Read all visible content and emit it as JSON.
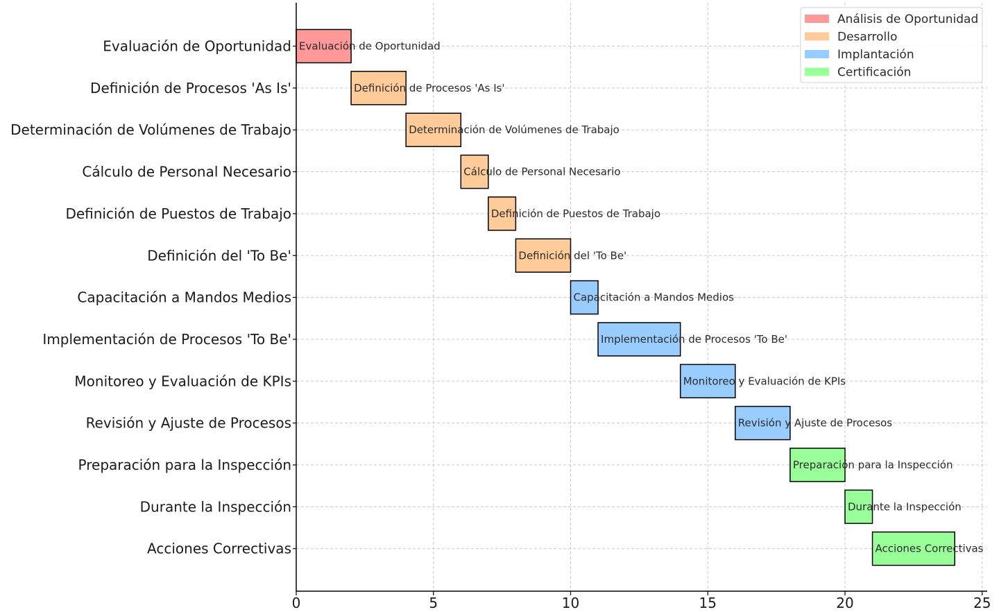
{
  "chart_data": {
    "type": "bar",
    "orientation": "horizontal-gantt",
    "title": "",
    "xlabel": "",
    "ylabel": "",
    "xlim": [
      0,
      25
    ],
    "x_ticks": [
      0,
      5,
      10,
      15,
      20,
      25
    ],
    "grid": true,
    "legend_position": "top-right",
    "phases": [
      {
        "name": "Análisis de Oportunidad",
        "color": "#ff9999"
      },
      {
        "name": "Desarrollo",
        "color": "#ffcc99"
      },
      {
        "name": "Implantación",
        "color": "#99ccff"
      },
      {
        "name": "Certificación",
        "color": "#99ff99"
      }
    ],
    "tasks": [
      {
        "name": "Evaluación de Oportunidad",
        "start": 0,
        "duration": 2,
        "phase": "Análisis de Oportunidad"
      },
      {
        "name": "Definición de Procesos 'As Is'",
        "start": 2,
        "duration": 2,
        "phase": "Desarrollo"
      },
      {
        "name": "Determinación de Volúmenes de Trabajo",
        "start": 4,
        "duration": 2,
        "phase": "Desarrollo"
      },
      {
        "name": "Cálculo de Personal Necesario",
        "start": 6,
        "duration": 1,
        "phase": "Desarrollo"
      },
      {
        "name": "Definición de Puestos de Trabajo",
        "start": 7,
        "duration": 1,
        "phase": "Desarrollo"
      },
      {
        "name": "Definición del 'To Be'",
        "start": 8,
        "duration": 2,
        "phase": "Desarrollo"
      },
      {
        "name": "Capacitación a Mandos Medios",
        "start": 10,
        "duration": 1,
        "phase": "Implantación"
      },
      {
        "name": "Implementación de Procesos 'To Be'",
        "start": 11,
        "duration": 3,
        "phase": "Implantación"
      },
      {
        "name": "Monitoreo y Evaluación de KPIs",
        "start": 14,
        "duration": 2,
        "phase": "Implantación"
      },
      {
        "name": "Revisión y Ajuste de Procesos",
        "start": 16,
        "duration": 2,
        "phase": "Implantación"
      },
      {
        "name": "Preparación para la Inspección",
        "start": 18,
        "duration": 2,
        "phase": "Certificación"
      },
      {
        "name": "Durante la Inspección",
        "start": 20,
        "duration": 1,
        "phase": "Certificación"
      },
      {
        "name": "Acciones Correctivas",
        "start": 21,
        "duration": 3,
        "phase": "Certificación"
      }
    ]
  }
}
